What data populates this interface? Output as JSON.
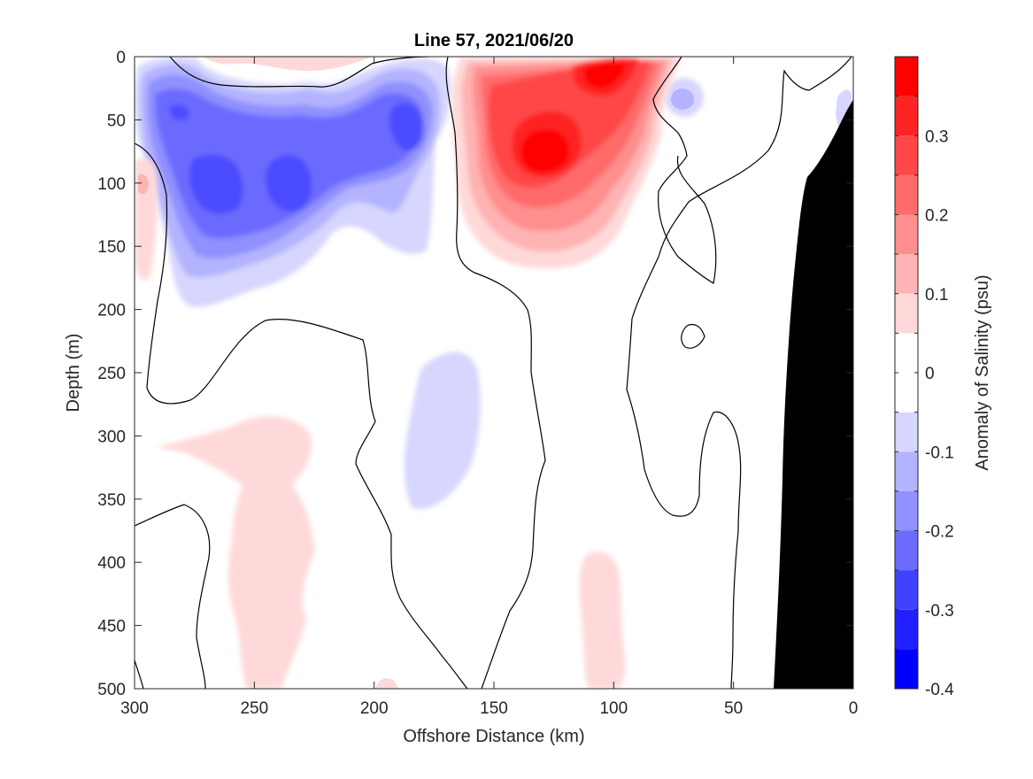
{
  "chart_data": {
    "type": "heatmap",
    "subtype": "filled-contour section",
    "title": "Line 57, 2021/06/20",
    "xlabel": "Offshore Distance (km)",
    "ylabel": "Depth (m)",
    "xlim": [
      300,
      0
    ],
    "x_reversed": true,
    "ylim": [
      0,
      500
    ],
    "y_reversed": true,
    "x_ticks": [
      "300",
      "250",
      "200",
      "150",
      "100",
      "50",
      "0"
    ],
    "y_ticks": [
      "0",
      "50",
      "100",
      "150",
      "200",
      "250",
      "300",
      "350",
      "400",
      "450",
      "500"
    ],
    "grid": false,
    "colorbar": {
      "label": "Anomaly of Salinity (psu)",
      "range": [
        -0.4,
        0.4
      ],
      "level_step": 0.05,
      "tick_labels": [
        "0.3",
        "0.2",
        "0.1",
        "0",
        "-0.1",
        "-0.2",
        "-0.3",
        "-0.4"
      ],
      "colormap": "blue-white-red",
      "colors": [
        "#0000ff",
        "#2020ff",
        "#4040ff",
        "#6b6bff",
        "#9090ff",
        "#b3b3ff",
        "#d6d6ff",
        "#ffffff",
        "#ffffff",
        "#ffd9d9",
        "#ffb3b3",
        "#ff8e8e",
        "#ff6b6b",
        "#ff4747",
        "#ff2424",
        "#ff0000"
      ]
    },
    "features": [
      {
        "name": "fresh anomaly core",
        "x_km": 270,
        "depth_m": 100,
        "value": -0.3
      },
      {
        "name": "fresh anomaly core",
        "x_km": 240,
        "depth_m": 95,
        "value": -0.3
      },
      {
        "name": "fresh anomaly core",
        "x_km": 185,
        "depth_m": 50,
        "value": -0.3
      },
      {
        "name": "saline anomaly core",
        "x_km": 130,
        "depth_m": 80,
        "value": 0.35
      },
      {
        "name": "saline anomaly core",
        "x_km": 105,
        "depth_m": 15,
        "value": 0.35
      },
      {
        "name": "weak fresh patch",
        "x_km": 175,
        "depth_m": 320,
        "value": -0.1
      },
      {
        "name": "weak saline patch",
        "x_km": 245,
        "depth_m": 380,
        "value": 0.1
      },
      {
        "name": "weak saline patch",
        "x_km": 100,
        "depth_m": 440,
        "value": 0.1
      }
    ],
    "bathymetry": {
      "color": "#000000",
      "description": "seafloor / shelf"
    }
  }
}
